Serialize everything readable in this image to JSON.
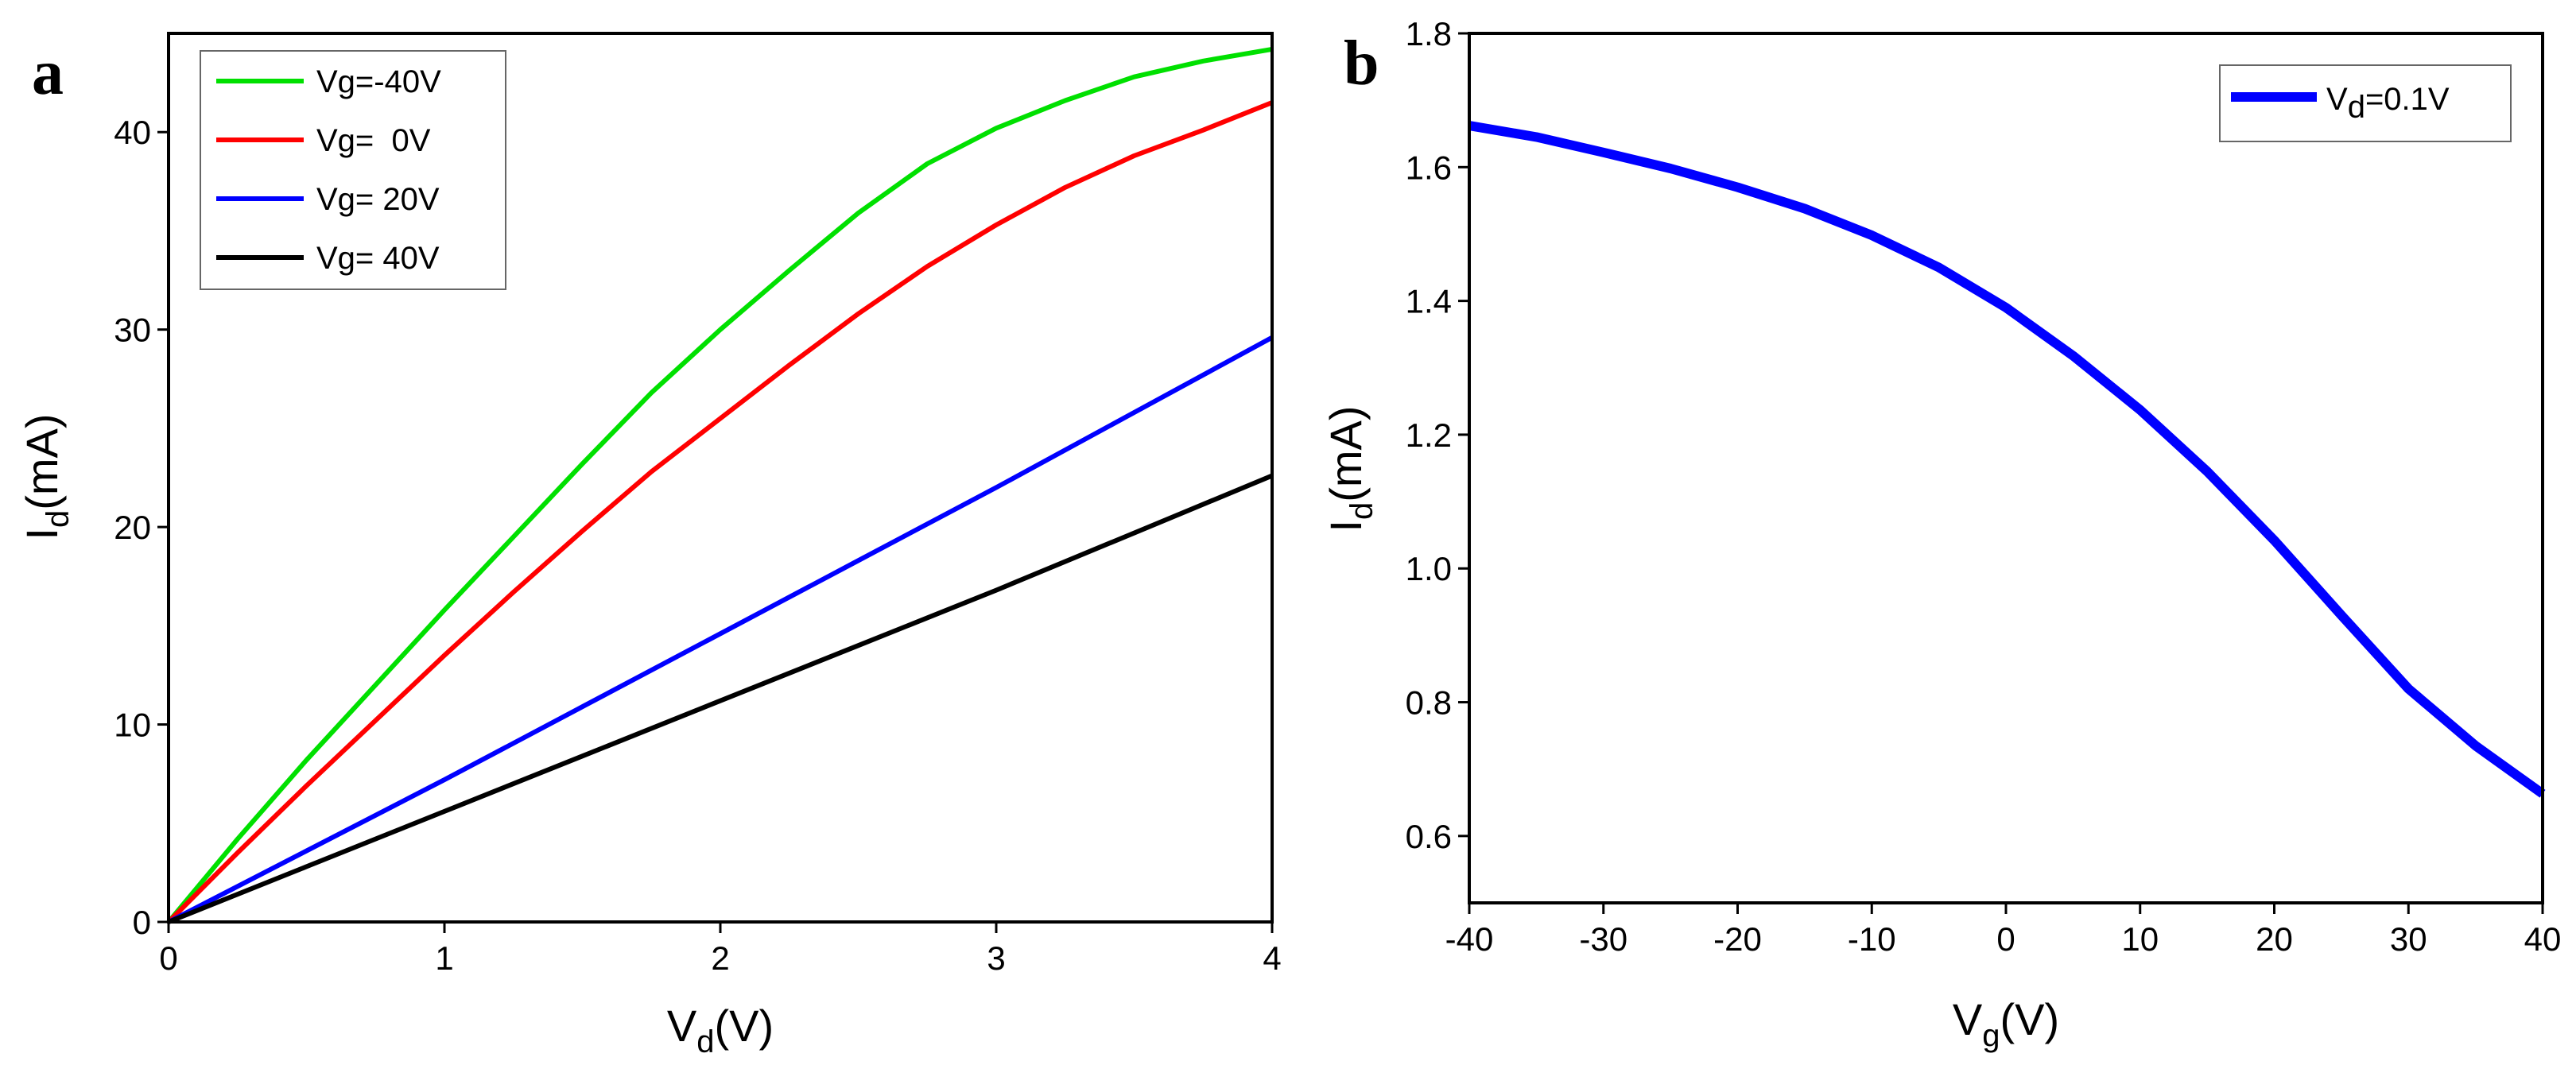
{
  "chart_data": [
    {
      "panel_label": "a",
      "type": "line",
      "xlabel_main": "V",
      "xlabel_sub": "d",
      "xlabel_unit": "(V)",
      "ylabel_main": "I",
      "ylabel_sub": "d",
      "ylabel_unit": "(mA)",
      "xlim": [
        0,
        4
      ],
      "ylim": [
        0,
        45
      ],
      "xticks": [
        0,
        1,
        2,
        3,
        4
      ],
      "yticks": [
        0,
        10,
        20,
        30,
        40
      ],
      "legend_position": "top-left",
      "series": [
        {
          "name": "Vg=-40V",
          "color": "#00e000",
          "x": [
            0,
            0.25,
            0.5,
            0.75,
            1.0,
            1.25,
            1.5,
            1.75,
            2.0,
            2.25,
            2.5,
            2.75,
            3.0,
            3.25,
            3.5,
            3.75,
            4.0
          ],
          "y": [
            0,
            4.2,
            8.2,
            12.0,
            15.8,
            19.5,
            23.2,
            26.8,
            30.0,
            33.0,
            35.9,
            38.4,
            40.2,
            41.6,
            42.8,
            43.6,
            44.2
          ]
        },
        {
          "name": "Vg=  0V",
          "color": "#ff0000",
          "x": [
            0,
            0.25,
            0.5,
            0.75,
            1.0,
            1.25,
            1.5,
            1.75,
            2.0,
            2.25,
            2.5,
            2.75,
            3.0,
            3.25,
            3.5,
            3.75,
            4.0
          ],
          "y": [
            0,
            3.5,
            6.9,
            10.2,
            13.5,
            16.7,
            19.8,
            22.8,
            25.5,
            28.2,
            30.8,
            33.2,
            35.3,
            37.2,
            38.8,
            40.1,
            41.5
          ]
        },
        {
          "name": "Vg= 20V",
          "color": "#0000ff",
          "x": [
            0,
            0.5,
            1.0,
            1.5,
            2.0,
            2.5,
            3.0,
            3.5,
            4.0
          ],
          "y": [
            0,
            3.6,
            7.2,
            10.9,
            14.6,
            18.3,
            22.0,
            25.8,
            29.6
          ]
        },
        {
          "name": "Vg= 40V",
          "color": "#000000",
          "x": [
            0,
            0.5,
            1.0,
            1.5,
            2.0,
            2.5,
            3.0,
            3.5,
            4.0
          ],
          "y": [
            0,
            2.8,
            5.6,
            8.4,
            11.2,
            14.0,
            16.8,
            19.7,
            22.6
          ]
        }
      ]
    },
    {
      "panel_label": "b",
      "type": "line",
      "xlabel_main": "V",
      "xlabel_sub": "g",
      "xlabel_unit": "(V)",
      "ylabel_main": "I",
      "ylabel_sub": "d",
      "ylabel_unit": "(mA)",
      "xlim": [
        -40,
        40
      ],
      "ylim": [
        0.5,
        1.8
      ],
      "xticks": [
        -40,
        -30,
        -20,
        -10,
        0,
        10,
        20,
        30,
        40
      ],
      "yticks": [
        0.6,
        0.8,
        1.0,
        1.2,
        1.4,
        1.6,
        1.8
      ],
      "legend_position": "top-right",
      "series": [
        {
          "name": "V",
          "name_sub": "d",
          "name_rest": "=0.1V",
          "color": "#0000ff",
          "x": [
            -40,
            -35,
            -30,
            -25,
            -20,
            -15,
            -10,
            -5,
            0,
            5,
            10,
            15,
            20,
            25,
            30,
            35,
            40
          ],
          "y": [
            1.662,
            1.645,
            1.622,
            1.598,
            1.57,
            1.538,
            1.498,
            1.45,
            1.39,
            1.318,
            1.237,
            1.145,
            1.042,
            0.93,
            0.82,
            0.735,
            0.663
          ]
        }
      ]
    }
  ]
}
